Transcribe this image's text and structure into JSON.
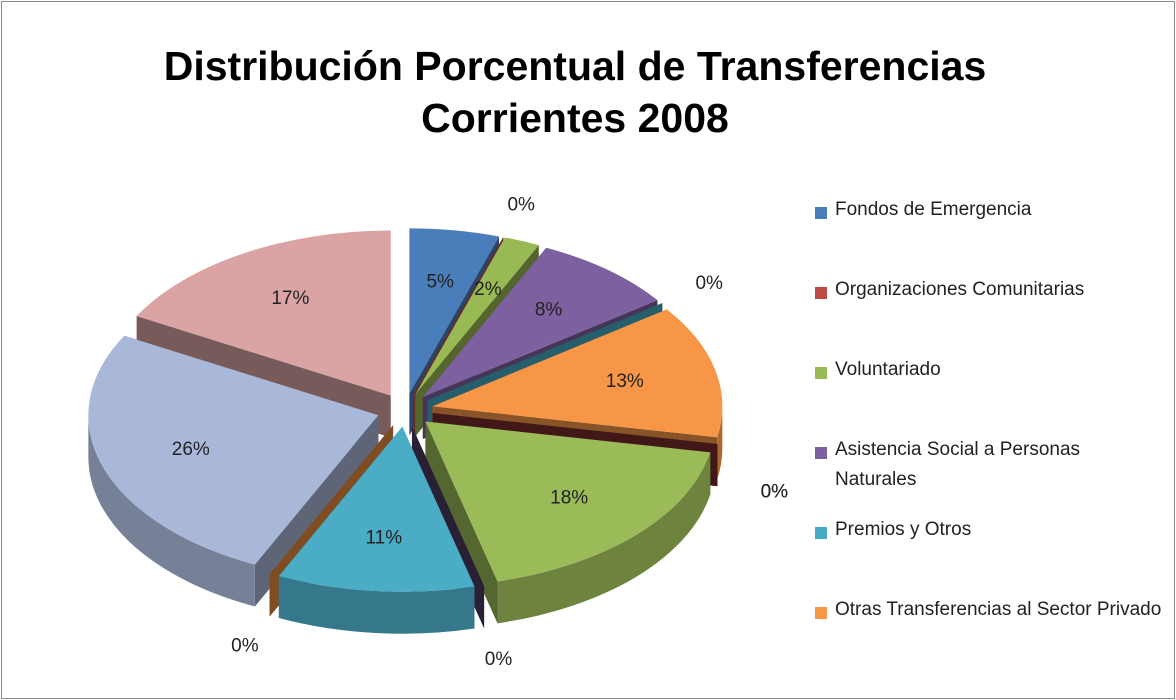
{
  "chart_data": {
    "type": "pie3d",
    "title": "Distribución Porcentual de Transferencias Corrientes 2008",
    "categories": [
      "Fondos de Emergencia",
      "Organizaciones Comunitarias",
      "Voluntariado",
      "Asistencia Social a Personas Naturales",
      "Premios y Otros",
      "Otras Transferencias al Sector Privado",
      null,
      null,
      null,
      null,
      null,
      null,
      null,
      null
    ],
    "values": [
      5,
      0,
      2,
      8,
      0,
      13,
      0,
      0,
      18,
      0,
      11,
      0,
      26,
      17
    ],
    "value_labels": [
      "5%",
      "0%",
      "2%",
      "8%",
      "0%",
      "13%",
      "0%",
      "0%",
      "18%",
      "0%",
      "11%",
      "0%",
      "26%",
      "17%"
    ],
    "colors": [
      "#4a7ebb",
      "#be4b48",
      "#98b954",
      "#7d60a0",
      "#46aac5",
      "#f79646",
      "#2c4d75",
      "#772c2a",
      "#9bbb59",
      "#4d3b62",
      "#4bacc6",
      "#e98a3c",
      "#a9b8d9",
      "#d9a4a3"
    ],
    "legend": "right"
  }
}
